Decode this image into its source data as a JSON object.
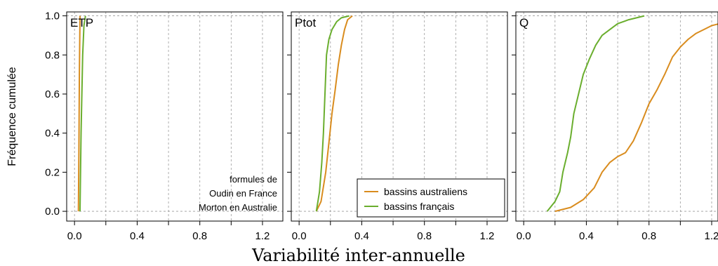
{
  "chart_data": [
    {
      "type": "line",
      "title": "ETP",
      "xlabel": "Variabilité inter-annuelle",
      "ylabel": "Fréquence cumulée",
      "xlim": [
        -0.05,
        1.33
      ],
      "ylim": [
        -0.05,
        1.02
      ],
      "x_ticks": [
        "0.0",
        "0.4",
        "0.8",
        "1.2"
      ],
      "y_ticks": [
        "0.0",
        "0.2",
        "0.4",
        "0.6",
        "0.8",
        "1.0"
      ],
      "grid": true,
      "annotation": [
        "formules de",
        "Oudin en France",
        "Morton en Australie"
      ],
      "series": [
        {
          "name": "bassins australiens",
          "color": "#D98C1E",
          "points": [
            [
              0.025,
              0
            ],
            [
              0.028,
              0.3
            ],
            [
              0.031,
              0.7
            ],
            [
              0.035,
              1.0
            ]
          ]
        },
        {
          "name": "bassins français",
          "color": "#6AAE2E",
          "points": [
            [
              0.035,
              0
            ],
            [
              0.042,
              0.4
            ],
            [
              0.052,
              0.8
            ],
            [
              0.06,
              0.95
            ],
            [
              0.07,
              1.0
            ]
          ]
        }
      ]
    },
    {
      "type": "line",
      "title": "Ptot",
      "xlim": [
        -0.05,
        1.33
      ],
      "ylim": [
        -0.05,
        1.02
      ],
      "x_ticks": [
        "0.0",
        "0.4",
        "0.8",
        "1.2"
      ],
      "grid": true,
      "legend": {
        "position": "bottom-right",
        "entries": [
          "bassins australiens",
          "bassins français"
        ]
      },
      "series": [
        {
          "name": "bassins australiens",
          "color": "#D98C1E",
          "points": [
            [
              0.11,
              0
            ],
            [
              0.14,
              0.05
            ],
            [
              0.17,
              0.2
            ],
            [
              0.19,
              0.35
            ],
            [
              0.21,
              0.5
            ],
            [
              0.23,
              0.62
            ],
            [
              0.25,
              0.75
            ],
            [
              0.27,
              0.85
            ],
            [
              0.29,
              0.93
            ],
            [
              0.31,
              0.98
            ],
            [
              0.34,
              1.0
            ]
          ]
        },
        {
          "name": "bassins français",
          "color": "#6AAE2E",
          "points": [
            [
              0.11,
              0
            ],
            [
              0.13,
              0.1
            ],
            [
              0.145,
              0.25
            ],
            [
              0.155,
              0.4
            ],
            [
              0.165,
              0.6
            ],
            [
              0.175,
              0.8
            ],
            [
              0.19,
              0.88
            ],
            [
              0.21,
              0.93
            ],
            [
              0.24,
              0.97
            ],
            [
              0.27,
              0.99
            ],
            [
              0.32,
              1.0
            ]
          ]
        }
      ]
    },
    {
      "type": "line",
      "title": "Q",
      "xlim": [
        -0.05,
        1.33
      ],
      "ylim": [
        -0.05,
        1.02
      ],
      "x_ticks": [
        "0.0",
        "0.4",
        "0.8",
        "1.2"
      ],
      "grid": true,
      "series": [
        {
          "name": "bassins australiens",
          "color": "#D98C1E",
          "points": [
            [
              0.2,
              0
            ],
            [
              0.3,
              0.02
            ],
            [
              0.38,
              0.06
            ],
            [
              0.45,
              0.12
            ],
            [
              0.5,
              0.2
            ],
            [
              0.55,
              0.25
            ],
            [
              0.6,
              0.28
            ],
            [
              0.65,
              0.3
            ],
            [
              0.7,
              0.36
            ],
            [
              0.75,
              0.45
            ],
            [
              0.8,
              0.55
            ],
            [
              0.85,
              0.62
            ],
            [
              0.9,
              0.7
            ],
            [
              0.95,
              0.79
            ],
            [
              1.0,
              0.84
            ],
            [
              1.05,
              0.88
            ],
            [
              1.1,
              0.91
            ],
            [
              1.15,
              0.93
            ],
            [
              1.2,
              0.95
            ],
            [
              1.25,
              0.96
            ],
            [
              1.29,
              0.96
            ]
          ]
        },
        {
          "name": "bassins français",
          "color": "#6AAE2E",
          "points": [
            [
              0.15,
              0
            ],
            [
              0.2,
              0.05
            ],
            [
              0.23,
              0.1
            ],
            [
              0.25,
              0.2
            ],
            [
              0.28,
              0.3
            ],
            [
              0.3,
              0.38
            ],
            [
              0.32,
              0.5
            ],
            [
              0.35,
              0.6
            ],
            [
              0.38,
              0.7
            ],
            [
              0.42,
              0.78
            ],
            [
              0.46,
              0.85
            ],
            [
              0.5,
              0.9
            ],
            [
              0.55,
              0.93
            ],
            [
              0.6,
              0.96
            ],
            [
              0.67,
              0.98
            ],
            [
              0.72,
              0.99
            ],
            [
              0.77,
              1.0
            ]
          ]
        }
      ]
    }
  ]
}
